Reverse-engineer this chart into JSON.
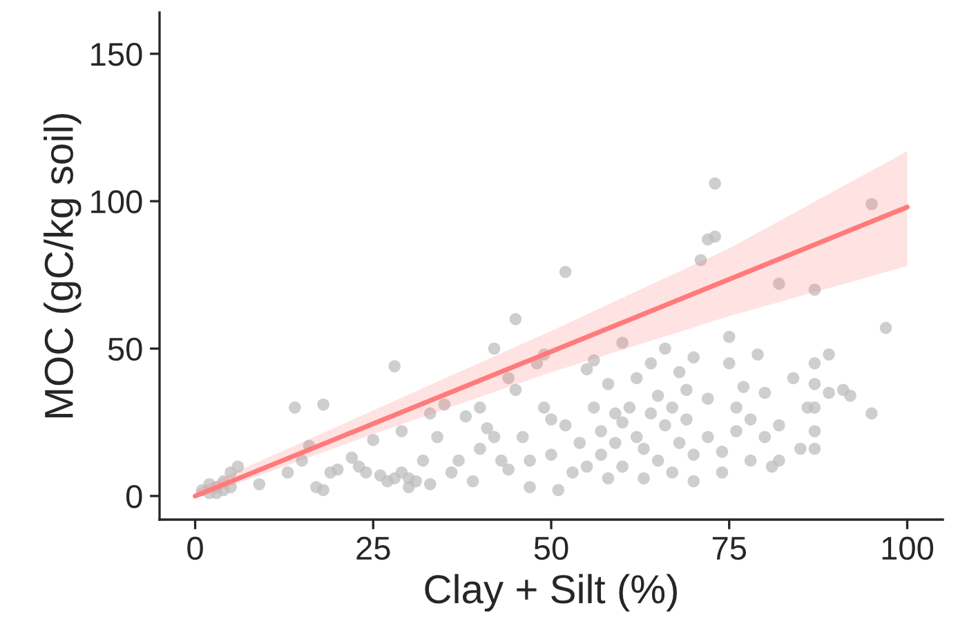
{
  "chart_data": {
    "type": "scatter",
    "xlabel": "Clay + Silt (%)",
    "ylabel": "MOC (gC/kg soil)",
    "xlim": [
      -5,
      105
    ],
    "ylim": [
      -8,
      164
    ],
    "xticks": [
      0,
      25,
      50,
      75,
      100
    ],
    "yticks": [
      0,
      50,
      100,
      150
    ],
    "grid": false,
    "marker": "circle",
    "series": [
      {
        "color": "#bdbdbd",
        "x": [
          1,
          2,
          3,
          3,
          4,
          4,
          5,
          5,
          6,
          9,
          2,
          13,
          14,
          15,
          16,
          17,
          18,
          18,
          19,
          20,
          22,
          23,
          24,
          25,
          26,
          27,
          28,
          28,
          29,
          29,
          30,
          30,
          31,
          32,
          33,
          33,
          34,
          35,
          36,
          37,
          38,
          39,
          40,
          40,
          41,
          42,
          42,
          43,
          44,
          44,
          45,
          45,
          46,
          47,
          47,
          48,
          49,
          49,
          50,
          50,
          51,
          52,
          52,
          53,
          54,
          55,
          55,
          56,
          56,
          57,
          57,
          58,
          58,
          59,
          59,
          60,
          60,
          60,
          61,
          62,
          62,
          63,
          63,
          64,
          64,
          65,
          65,
          66,
          66,
          67,
          67,
          68,
          68,
          69,
          69,
          70,
          70,
          70,
          71,
          72,
          73,
          73,
          72,
          72,
          74,
          74,
          75,
          75,
          76,
          76,
          77,
          78,
          78,
          79,
          80,
          80,
          81,
          82,
          82,
          82,
          84,
          85,
          86,
          87,
          87,
          87,
          87,
          87,
          87,
          89,
          89,
          91,
          92,
          95,
          95,
          97
        ],
        "values": [
          2,
          4,
          1,
          3,
          2,
          5,
          3,
          8,
          10,
          4,
          1,
          8,
          30,
          12,
          17,
          3,
          31,
          2,
          8,
          9,
          13,
          10,
          8,
          19,
          7,
          5,
          6,
          44,
          22,
          8,
          3,
          6,
          5,
          12,
          28,
          4,
          20,
          31,
          8,
          12,
          27,
          5,
          30,
          16,
          23,
          50,
          20,
          12,
          40,
          9,
          60,
          36,
          20,
          12,
          3,
          45,
          48,
          30,
          26,
          14,
          2,
          76,
          24,
          8,
          18,
          43,
          10,
          46,
          30,
          22,
          14,
          6,
          38,
          28,
          18,
          52,
          25,
          10,
          30,
          40,
          20,
          16,
          6,
          28,
          45,
          34,
          12,
          50,
          24,
          8,
          30,
          18,
          42,
          26,
          36,
          47,
          14,
          5,
          80,
          87,
          88,
          106,
          33,
          20,
          8,
          15,
          54,
          45,
          30,
          22,
          37,
          12,
          26,
          48,
          35,
          20,
          10,
          72,
          24,
          12,
          40,
          16,
          30,
          70,
          45,
          38,
          30,
          22,
          16,
          48,
          35,
          36,
          34,
          99,
          28,
          57
        ]
      },
      {
        "type": "line",
        "color": "#ff7b7b",
        "marker": "none",
        "line_style": "solid",
        "x": [
          0,
          25,
          50,
          75,
          100
        ],
        "values": [
          0,
          24.5,
          49,
          73.5,
          98
        ],
        "lower": [
          -1,
          21,
          42,
          61,
          78
        ],
        "upper": [
          2,
          29,
          56,
          84,
          117
        ]
      }
    ]
  }
}
